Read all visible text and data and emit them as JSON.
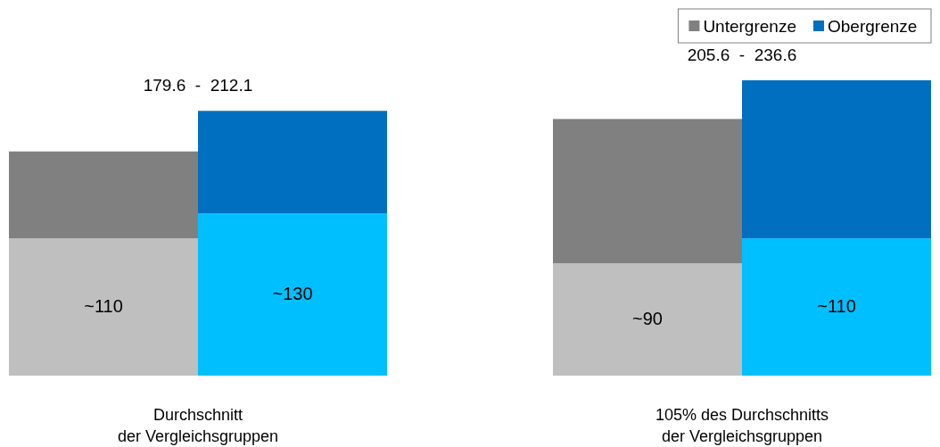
{
  "chart_data": {
    "type": "bar",
    "stacked": true,
    "categories": [
      null,
      null,
      null,
      null
    ],
    "series": [
      {
        "color": "#bfbfbf",
        "values": [
          110,
          null,
          90,
          null
        ],
        "value_labels": [
          "~110",
          null,
          "~90",
          null
        ]
      },
      {
        "name": "Untergrenze",
        "color": "#808080",
        "values": [
          69.6,
          null,
          115.6,
          null
        ]
      },
      {
        "color": "#00bfff",
        "values": [
          null,
          130,
          null,
          110
        ],
        "value_labels": [
          null,
          "~130",
          null,
          "~110"
        ]
      },
      {
        "name": "Obergrenze",
        "color": "#006fbf",
        "values": [
          null,
          82.1,
          null,
          126.6
        ]
      }
    ],
    "annotations": [
      "179.6  -  212.1",
      "Durchschnitt\nder Vergleichsgruppen",
      "205.6  -  236.6",
      "105% des Durchschnitts\nder Vergleichsgruppen"
    ],
    "legend": "top right"
  }
}
